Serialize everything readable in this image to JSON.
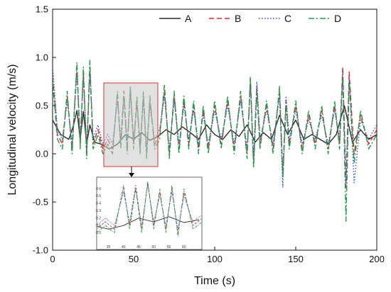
{
  "chart_data": {
    "type": "line",
    "title": "",
    "xlabel": "Time (s)",
    "ylabel": "Longitudinal velocity (m/s)",
    "xlim": [
      0,
      200
    ],
    "ylim": [
      -1.0,
      1.5
    ],
    "xticks": [
      "0",
      "50",
      "100",
      "150",
      "200"
    ],
    "yticks": [
      "-1.0",
      "-0.5",
      "0.0",
      "0.5",
      "1.0",
      "1.5"
    ],
    "legend_position": "top-right",
    "grid": false,
    "series": [
      {
        "name": "A",
        "color": "#2b2b2b",
        "dash": "solid",
        "x": [
          0,
          5,
          10,
          13,
          15,
          17,
          19,
          21,
          23,
          26,
          30,
          35,
          40,
          45,
          50,
          55,
          60,
          65,
          70,
          75,
          80,
          85,
          90,
          95,
          100,
          105,
          110,
          115,
          120,
          125,
          130,
          135,
          140,
          145,
          150,
          155,
          160,
          165,
          170,
          175,
          180,
          185,
          190,
          195,
          200
        ],
        "y": [
          0.35,
          0.2,
          0.15,
          0.3,
          0.45,
          0.15,
          0.44,
          0.1,
          0.3,
          0.12,
          0.1,
          0.05,
          0.1,
          0.2,
          0.15,
          0.22,
          0.14,
          0.18,
          0.25,
          0.2,
          0.28,
          0.22,
          0.15,
          0.3,
          0.2,
          0.15,
          0.25,
          0.18,
          0.3,
          0.12,
          0.22,
          0.15,
          0.4,
          0.2,
          0.35,
          0.15,
          0.2,
          0.15,
          0.1,
          0.2,
          0.5,
          0.12,
          0.25,
          0.15,
          0.2
        ]
      },
      {
        "name": "B",
        "color": "#e0292b",
        "dash": "dash",
        "x": [
          0,
          3,
          6,
          9,
          12,
          15,
          17,
          19,
          21,
          23,
          25,
          28,
          31,
          34,
          37,
          40,
          42,
          44,
          46,
          48,
          50,
          52,
          54,
          56,
          58,
          60,
          63,
          66,
          69,
          72,
          75,
          78,
          81,
          84,
          87,
          90,
          93,
          96,
          100,
          104,
          108,
          112,
          116,
          120,
          122,
          124,
          126,
          128,
          132,
          136,
          140,
          142,
          144,
          146,
          150,
          154,
          158,
          162,
          166,
          170,
          174,
          177,
          179,
          181,
          183,
          186,
          190,
          195,
          200
        ],
        "y": [
          0.8,
          0.2,
          0.1,
          0.6,
          0.05,
          0.9,
          0.1,
          0.85,
          0.0,
          0.9,
          0.1,
          0.25,
          0.05,
          0.15,
          0.05,
          0.6,
          0.1,
          0.65,
          0.05,
          0.68,
          0.1,
          0.55,
          0.05,
          0.6,
          0.0,
          0.55,
          0.1,
          0.2,
          0.65,
          0.0,
          0.6,
          0.05,
          0.55,
          0.1,
          0.5,
          0.05,
          0.45,
          0.05,
          0.5,
          0.1,
          0.55,
          0.05,
          0.6,
          0.0,
          0.78,
          -0.1,
          0.7,
          0.1,
          0.5,
          0.05,
          0.65,
          -0.2,
          0.55,
          0.1,
          0.5,
          0.05,
          0.4,
          0.1,
          0.45,
          0.05,
          0.5,
          0.1,
          0.9,
          -0.35,
          0.85,
          0.0,
          0.4,
          0.1,
          0.25
        ]
      },
      {
        "name": "C",
        "color": "#2a55d6",
        "dash": "dot",
        "x": [
          0,
          3,
          6,
          9,
          12,
          15,
          17,
          19,
          21,
          23,
          25,
          28,
          31,
          34,
          37,
          40,
          42,
          44,
          46,
          48,
          50,
          52,
          54,
          56,
          58,
          60,
          63,
          66,
          69,
          72,
          75,
          78,
          81,
          84,
          87,
          90,
          93,
          96,
          100,
          104,
          108,
          112,
          116,
          120,
          122,
          124,
          126,
          128,
          132,
          136,
          140,
          142,
          144,
          146,
          150,
          154,
          158,
          162,
          166,
          170,
          174,
          177,
          179,
          181,
          183,
          186,
          190,
          195,
          200
        ],
        "y": [
          0.9,
          0.25,
          0.15,
          0.55,
          0.1,
          0.85,
          0.15,
          0.8,
          0.05,
          0.85,
          0.15,
          0.3,
          0.1,
          0.2,
          0.1,
          0.55,
          0.15,
          0.6,
          0.1,
          0.65,
          0.15,
          0.5,
          0.1,
          0.55,
          0.05,
          0.5,
          0.15,
          0.25,
          0.6,
          0.05,
          0.55,
          0.1,
          0.5,
          0.15,
          0.45,
          0.1,
          0.4,
          0.1,
          0.45,
          0.15,
          0.5,
          0.1,
          0.55,
          0.05,
          0.72,
          -0.05,
          0.75,
          0.15,
          0.45,
          0.1,
          0.6,
          -0.35,
          0.6,
          0.15,
          0.45,
          0.1,
          0.35,
          0.15,
          0.4,
          0.1,
          0.45,
          0.15,
          0.85,
          -0.3,
          0.8,
          -0.3,
          0.35,
          0.15,
          0.3
        ]
      },
      {
        "name": "D",
        "color": "#1e9b4a",
        "dash": "dashdot",
        "x": [
          0,
          3,
          6,
          9,
          12,
          15,
          17,
          19,
          21,
          23,
          25,
          28,
          31,
          34,
          37,
          40,
          42,
          44,
          46,
          48,
          50,
          52,
          54,
          56,
          58,
          60,
          63,
          66,
          69,
          72,
          75,
          78,
          81,
          84,
          87,
          90,
          93,
          96,
          100,
          104,
          108,
          112,
          116,
          120,
          122,
          124,
          126,
          128,
          132,
          136,
          140,
          142,
          144,
          146,
          150,
          154,
          158,
          162,
          166,
          170,
          174,
          177,
          179,
          181,
          183,
          186,
          190,
          195,
          200
        ],
        "y": [
          0.75,
          0.15,
          0.05,
          0.65,
          0.0,
          0.95,
          0.05,
          0.9,
          -0.05,
          0.97,
          0.05,
          0.2,
          0.0,
          0.1,
          0.0,
          0.65,
          0.05,
          0.6,
          0.0,
          0.7,
          0.05,
          0.6,
          0.0,
          0.65,
          -0.05,
          0.6,
          0.05,
          0.15,
          0.72,
          -0.05,
          0.65,
          0.0,
          0.6,
          0.05,
          0.55,
          0.0,
          0.5,
          0.0,
          0.55,
          0.05,
          0.6,
          0.0,
          0.65,
          -0.05,
          0.8,
          -0.15,
          0.65,
          0.05,
          0.55,
          0.0,
          0.7,
          -0.25,
          0.5,
          0.05,
          0.55,
          0.0,
          0.45,
          0.05,
          0.5,
          0.0,
          0.55,
          0.05,
          0.8,
          -0.7,
          0.75,
          -0.1,
          0.45,
          0.05,
          0.2
        ]
      }
    ],
    "inset": {
      "xticks": [
        "35",
        "40",
        "45",
        "50",
        "55",
        "60"
      ],
      "yticks": [
        "0.6",
        "0.5",
        "0.4",
        "0.3",
        "0.2",
        "0.1",
        "0.0"
      ],
      "source_region": {
        "xlim": [
          33,
          65
        ],
        "ylim": [
          -0.13,
          0.7
        ]
      }
    }
  }
}
